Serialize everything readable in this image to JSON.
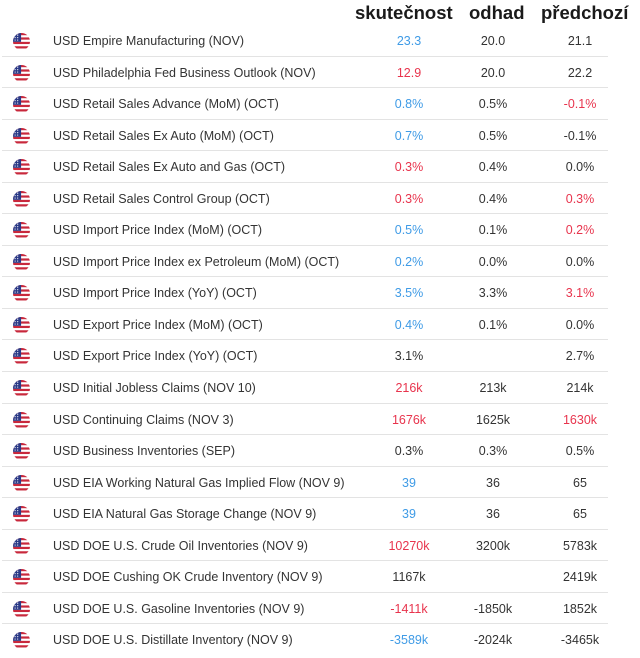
{
  "colors": {
    "better": "#3f9be6",
    "worse": "#e8344d",
    "neutral": "#333333"
  },
  "header": {
    "actual": "skutečnost",
    "forecast": "odhad",
    "previous": "předchozí"
  },
  "rows": [
    {
      "flag": "us-flag-icon",
      "event": "USD Empire Manufacturing (NOV)",
      "actual": "23.3",
      "actual_color": "blue",
      "forecast": "20.0",
      "previous": "21.1",
      "previous_color": "black"
    },
    {
      "flag": "us-flag-icon",
      "event": "USD Philadelphia Fed Business Outlook (NOV)",
      "actual": "12.9",
      "actual_color": "red",
      "forecast": "20.0",
      "previous": "22.2",
      "previous_color": "black"
    },
    {
      "flag": "us-flag-icon",
      "event": "USD Retail Sales Advance (MoM) (OCT)",
      "actual": "0.8%",
      "actual_color": "blue",
      "forecast": "0.5%",
      "previous": "-0.1%",
      "previous_color": "red"
    },
    {
      "flag": "us-flag-icon",
      "event": "USD Retail Sales Ex Auto (MoM) (OCT)",
      "actual": "0.7%",
      "actual_color": "blue",
      "forecast": "0.5%",
      "previous": "-0.1%",
      "previous_color": "black"
    },
    {
      "flag": "us-flag-icon",
      "event": "USD Retail Sales Ex Auto and Gas (OCT)",
      "actual": "0.3%",
      "actual_color": "red",
      "forecast": "0.4%",
      "previous": "0.0%",
      "previous_color": "black"
    },
    {
      "flag": "us-flag-icon",
      "event": "USD Retail Sales Control Group (OCT)",
      "actual": "0.3%",
      "actual_color": "red",
      "forecast": "0.4%",
      "previous": "0.3%",
      "previous_color": "red"
    },
    {
      "flag": "us-flag-icon",
      "event": "USD Import Price Index (MoM) (OCT)",
      "actual": "0.5%",
      "actual_color": "blue",
      "forecast": "0.1%",
      "previous": "0.2%",
      "previous_color": "red"
    },
    {
      "flag": "us-flag-icon",
      "event": "USD Import Price Index ex Petroleum (MoM) (OCT)",
      "actual": "0.2%",
      "actual_color": "blue",
      "forecast": "0.0%",
      "previous": "0.0%",
      "previous_color": "black"
    },
    {
      "flag": "us-flag-icon",
      "event": "USD Import Price Index (YoY) (OCT)",
      "actual": "3.5%",
      "actual_color": "blue",
      "forecast": "3.3%",
      "previous": "3.1%",
      "previous_color": "red"
    },
    {
      "flag": "us-flag-icon",
      "event": "USD Export Price Index (MoM) (OCT)",
      "actual": "0.4%",
      "actual_color": "blue",
      "forecast": "0.1%",
      "previous": "0.0%",
      "previous_color": "black"
    },
    {
      "flag": "us-flag-icon",
      "event": "USD Export Price Index (YoY) (OCT)",
      "actual": "3.1%",
      "actual_color": "black",
      "forecast": "",
      "previous": "2.7%",
      "previous_color": "black"
    },
    {
      "flag": "us-flag-icon",
      "event": "USD Initial Jobless Claims (NOV 10)",
      "actual": "216k",
      "actual_color": "red",
      "forecast": "213k",
      "previous": "214k",
      "previous_color": "black"
    },
    {
      "flag": "us-flag-icon",
      "event": "USD Continuing Claims (NOV 3)",
      "actual": "1676k",
      "actual_color": "red",
      "forecast": "1625k",
      "previous": "1630k",
      "previous_color": "red"
    },
    {
      "flag": "us-flag-icon",
      "event": "USD Business Inventories (SEP)",
      "actual": "0.3%",
      "actual_color": "black",
      "forecast": "0.3%",
      "previous": "0.5%",
      "previous_color": "black"
    },
    {
      "flag": "us-flag-icon",
      "event": "USD EIA Working Natural Gas Implied Flow (NOV 9)",
      "actual": "39",
      "actual_color": "blue",
      "forecast": "36",
      "previous": "65",
      "previous_color": "black"
    },
    {
      "flag": "us-flag-icon",
      "event": "USD EIA Natural Gas Storage Change (NOV 9)",
      "actual": "39",
      "actual_color": "blue",
      "forecast": "36",
      "previous": "65",
      "previous_color": "black"
    },
    {
      "flag": "us-flag-icon",
      "event": "USD DOE U.S. Crude Oil Inventories (NOV 9)",
      "actual": "10270k",
      "actual_color": "red",
      "forecast": "3200k",
      "previous": "5783k",
      "previous_color": "black"
    },
    {
      "flag": "us-flag-icon",
      "event": "USD DOE Cushing OK Crude Inventory (NOV 9)",
      "actual": "1167k",
      "actual_color": "black",
      "forecast": "",
      "previous": "2419k",
      "previous_color": "black"
    },
    {
      "flag": "us-flag-icon",
      "event": "USD DOE U.S. Gasoline Inventories (NOV 9)",
      "actual": "-1411k",
      "actual_color": "red",
      "forecast": "-1850k",
      "previous": "1852k",
      "previous_color": "black"
    },
    {
      "flag": "us-flag-icon",
      "event": "USD DOE U.S. Distillate Inventory (NOV 9)",
      "actual": "-3589k",
      "actual_color": "blue",
      "forecast": "-2024k",
      "previous": "-3465k",
      "previous_color": "black"
    }
  ]
}
